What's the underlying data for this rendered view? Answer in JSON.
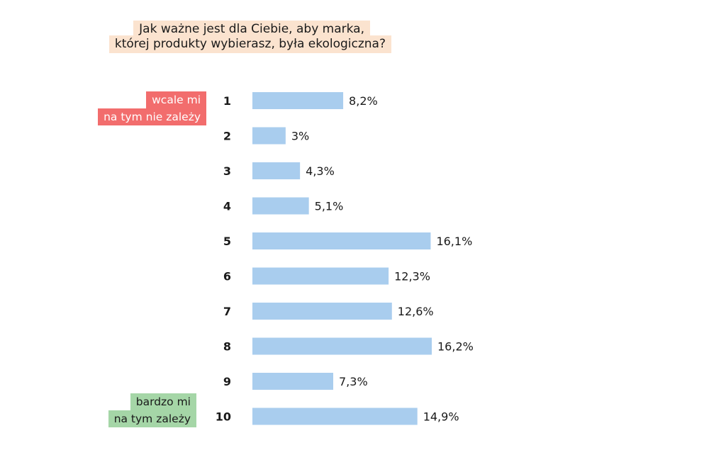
{
  "chart_data": {
    "type": "bar",
    "orientation": "horizontal",
    "title_lines": [
      "Jak ważne jest dla Ciebie, aby marka,",
      "której produkty wybierasz, była ekologiczna?"
    ],
    "categories": [
      "1",
      "2",
      "3",
      "4",
      "5",
      "6",
      "7",
      "8",
      "9",
      "10"
    ],
    "values": [
      8.2,
      3,
      4.3,
      5.1,
      16.1,
      12.3,
      12.6,
      16.2,
      7.3,
      14.9
    ],
    "value_labels": [
      "8,2%",
      "3%",
      "4,3%",
      "5,1%",
      "16,1%",
      "12,3%",
      "12,6%",
      "16,2%",
      "7,3%",
      "14,9%"
    ],
    "scale_low_label": [
      "wcale mi",
      "na tym nie zależy"
    ],
    "scale_high_label": [
      "bardzo mi",
      "na tym zależy"
    ],
    "xlim": [
      0,
      16.2
    ],
    "grid": false,
    "legend": "none"
  },
  "colors": {
    "bar": "#a9cdee",
    "title_bg": "#fbe3cf",
    "low_bg": "#f26d6d",
    "high_bg": "#a5d6a7"
  }
}
